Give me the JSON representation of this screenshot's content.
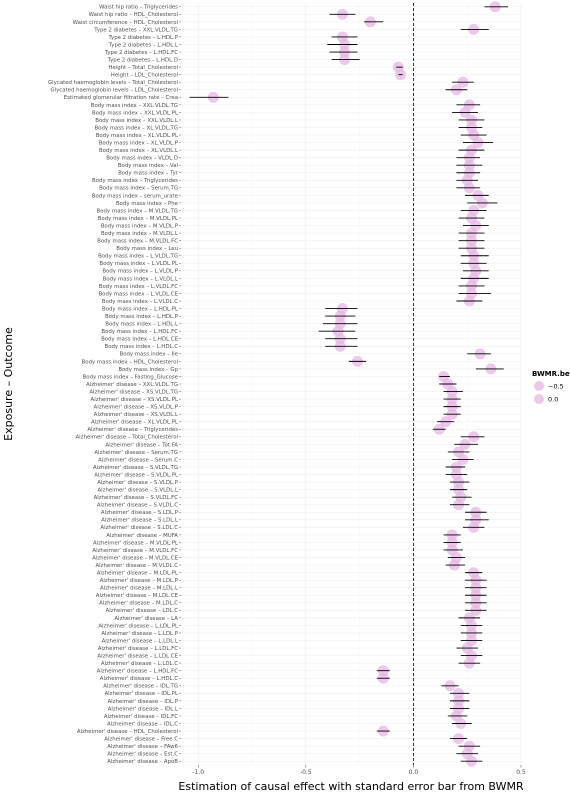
{
  "chart_data": {
    "type": "forest",
    "xlabel": "Estimation of causal effect with standard error bar from BWMR",
    "ylabel": "Exposure – Outcome",
    "xlim": [
      -1.08,
      0.5
    ],
    "xticks": [
      -1.0,
      -0.5,
      0.0,
      0.5
    ],
    "xtick_labels": [
      "-1.0",
      "-0.5",
      "0.0",
      "0.5"
    ],
    "reference_line_x": 0,
    "reference_line_style": "dashed",
    "grid": true,
    "legend": {
      "title": "BWMR.beta",
      "position": "right",
      "entries": [
        "−0.5",
        "0.0"
      ]
    },
    "point_color": "#e7b6e6",
    "rows": [
      {
        "label": "Waist hip ratio – Triglycerides",
        "beta": 0.38,
        "lo": 0.33,
        "hi": 0.44
      },
      {
        "label": "Waist hip ratio – HDL_Cholesterol",
        "beta": -0.33,
        "lo": -0.39,
        "hi": -0.27
      },
      {
        "label": "Waist circumference – HDL_Cholesterol",
        "beta": -0.2,
        "lo": -0.23,
        "hi": -0.14
      },
      {
        "label": "Type 2 diabetes – XXL.VLDL.TG",
        "beta": 0.28,
        "lo": 0.22,
        "hi": 0.35
      },
      {
        "label": "Type 2 diabetes – L.HDL.P",
        "beta": -0.33,
        "lo": -0.38,
        "hi": -0.26
      },
      {
        "label": "Type 2 diabetes – L.HDL.L",
        "beta": -0.32,
        "lo": -0.4,
        "hi": -0.26
      },
      {
        "label": "Type 2 diabetes – L.HDL.FC",
        "beta": -0.32,
        "lo": -0.39,
        "hi": -0.26
      },
      {
        "label": "Type 2 diabetes – L.HDL.D",
        "beta": -0.32,
        "lo": -0.38,
        "hi": -0.25
      },
      {
        "label": "Height – Total_Cholesterol",
        "beta": -0.07,
        "lo": -0.08,
        "hi": -0.05
      },
      {
        "label": "Height – LDL_Cholesterol",
        "beta": -0.06,
        "lo": -0.07,
        "hi": -0.05
      },
      {
        "label": "Glycated haemoglobin levels – Total_Cholesterol",
        "beta": 0.23,
        "lo": 0.18,
        "hi": 0.28
      },
      {
        "label": "Glycated haemoglobin levels – LDL_Cholesterol",
        "beta": 0.2,
        "lo": 0.15,
        "hi": 0.25
      },
      {
        "label": "Estimated glomerular filtration rate – Crea",
        "beta": -0.93,
        "lo": -1.04,
        "hi": -0.86
      },
      {
        "label": "Body mass index – XXL.VLDL.TG",
        "beta": 0.26,
        "lo": 0.2,
        "hi": 0.31
      },
      {
        "label": "Body mass index – XXL.VLDL.PL",
        "beta": 0.24,
        "lo": 0.18,
        "hi": 0.3
      },
      {
        "label": "Body mass index – XXL.VLDL.L",
        "beta": 0.27,
        "lo": 0.21,
        "hi": 0.33
      },
      {
        "label": "Body mass index – XL.VLDL.TG",
        "beta": 0.27,
        "lo": 0.21,
        "hi": 0.32
      },
      {
        "label": "Body mass index – XL.VLDL.PL",
        "beta": 0.28,
        "lo": 0.22,
        "hi": 0.34
      },
      {
        "label": "Body mass index – XL.VLDL.P",
        "beta": 0.3,
        "lo": 0.23,
        "hi": 0.37
      },
      {
        "label": "Body mass index – XL.VLDL.L",
        "beta": 0.27,
        "lo": 0.21,
        "hi": 0.33
      },
      {
        "label": "Body mass index – VLDL.D",
        "beta": 0.26,
        "lo": 0.2,
        "hi": 0.31
      },
      {
        "label": "Body mass index – Val",
        "beta": 0.26,
        "lo": 0.2,
        "hi": 0.32
      },
      {
        "label": "Body mass index – Tyr",
        "beta": 0.26,
        "lo": 0.2,
        "hi": 0.31
      },
      {
        "label": "Body mass index – Triglycerides",
        "beta": 0.25,
        "lo": 0.2,
        "hi": 0.3
      },
      {
        "label": "Body mass index – Serum.TG",
        "beta": 0.26,
        "lo": 0.2,
        "hi": 0.31
      },
      {
        "label": "Body mass index – serum_urate",
        "beta": 0.3,
        "lo": 0.24,
        "hi": 0.35
      },
      {
        "label": "Body mass index – Phe",
        "beta": 0.32,
        "lo": 0.25,
        "hi": 0.39
      },
      {
        "label": "Body mass index – M.VLDL.TG",
        "beta": 0.28,
        "lo": 0.22,
        "hi": 0.34
      },
      {
        "label": "Body mass index – M.VLDL.PL",
        "beta": 0.27,
        "lo": 0.21,
        "hi": 0.33
      },
      {
        "label": "Body mass index – M.VLDL.P",
        "beta": 0.29,
        "lo": 0.23,
        "hi": 0.35
      },
      {
        "label": "Body mass index – M.VLDL.L",
        "beta": 0.27,
        "lo": 0.21,
        "hi": 0.33
      },
      {
        "label": "Body mass index – M.VLDL.FC",
        "beta": 0.27,
        "lo": 0.21,
        "hi": 0.33
      },
      {
        "label": "Body mass index – Leu",
        "beta": 0.27,
        "lo": 0.21,
        "hi": 0.33
      },
      {
        "label": "Body mass index – L.VLDL.TG",
        "beta": 0.28,
        "lo": 0.22,
        "hi": 0.35
      },
      {
        "label": "Body mass index – L.VLDL.PL",
        "beta": 0.28,
        "lo": 0.22,
        "hi": 0.34
      },
      {
        "label": "Body mass index – L.VLDL.P",
        "beta": 0.29,
        "lo": 0.23,
        "hi": 0.35
      },
      {
        "label": "Body mass index – L.VLDL.L",
        "beta": 0.28,
        "lo": 0.22,
        "hi": 0.35
      },
      {
        "label": "Body mass index – L.VLDL.FC",
        "beta": 0.27,
        "lo": 0.21,
        "hi": 0.33
      },
      {
        "label": "Body mass index – L.VLDL.CE",
        "beta": 0.27,
        "lo": 0.21,
        "hi": 0.36
      },
      {
        "label": "Body mass index – L.VLDL.C",
        "beta": 0.26,
        "lo": 0.2,
        "hi": 0.32
      },
      {
        "label": "Body mass index – L.HDL.PL",
        "beta": -0.33,
        "lo": -0.41,
        "hi": -0.26
      },
      {
        "label": "Body mass index – L.HDL.P",
        "beta": -0.34,
        "lo": -0.41,
        "hi": -0.27
      },
      {
        "label": "Body mass index – L.HDL.L",
        "beta": -0.34,
        "lo": -0.42,
        "hi": -0.26
      },
      {
        "label": "Body mass index – L.HDL.FC",
        "beta": -0.35,
        "lo": -0.44,
        "hi": -0.27
      },
      {
        "label": "Body mass index – L.HDL.CE",
        "beta": -0.34,
        "lo": -0.41,
        "hi": -0.26
      },
      {
        "label": "Body mass index – L.HDL.C",
        "beta": -0.34,
        "lo": -0.41,
        "hi": -0.26
      },
      {
        "label": "Body mass index – Ile",
        "beta": 0.31,
        "lo": 0.25,
        "hi": 0.36
      },
      {
        "label": "Body mass index – HDL_Cholesterol",
        "beta": -0.26,
        "lo": -0.3,
        "hi": -0.22
      },
      {
        "label": "Body mass index – Gp",
        "beta": 0.36,
        "lo": 0.29,
        "hi": 0.42
      },
      {
        "label": "Body mass index – Fasting_Glucose",
        "beta": 0.14,
        "lo": 0.12,
        "hi": 0.17
      },
      {
        "label": "Alzheimer' disease – XXL.VLDL.TG",
        "beta": 0.16,
        "lo": 0.12,
        "hi": 0.2
      },
      {
        "label": "Alzheimer' disease – XS.VLDL.TG",
        "beta": 0.18,
        "lo": 0.14,
        "hi": 0.23
      },
      {
        "label": "Alzheimer' disease – XS.VLDL.PL",
        "beta": 0.18,
        "lo": 0.14,
        "hi": 0.22
      },
      {
        "label": "Alzheimer' disease – XS.VLDL.P",
        "beta": 0.18,
        "lo": 0.14,
        "hi": 0.22
      },
      {
        "label": "Alzheimer' disease – XS.VLDL.L",
        "beta": 0.18,
        "lo": 0.14,
        "hi": 0.22
      },
      {
        "label": "Alzheimer' disease – XL.VLDL.PL",
        "beta": 0.15,
        "lo": 0.11,
        "hi": 0.19
      },
      {
        "label": "Alzheimer' disease – Triglycerides",
        "beta": 0.12,
        "lo": 0.09,
        "hi": 0.15
      },
      {
        "label": "Alzheimer' disease – Total_Cholesterol",
        "beta": 0.28,
        "lo": 0.22,
        "hi": 0.33
      },
      {
        "label": "Alzheimer' disease – Tot.FA",
        "beta": 0.24,
        "lo": 0.19,
        "hi": 0.3
      },
      {
        "label": "Alzheimer' disease – Serum.TG",
        "beta": 0.21,
        "lo": 0.16,
        "hi": 0.26
      },
      {
        "label": "Alzheimer' disease – Serum.C",
        "beta": 0.23,
        "lo": 0.18,
        "hi": 0.28
      },
      {
        "label": "Alzheimer' disease – S.VLDL.TG",
        "beta": 0.2,
        "lo": 0.15,
        "hi": 0.24
      },
      {
        "label": "Alzheimer' disease – S.VLDL.PL",
        "beta": 0.2,
        "lo": 0.15,
        "hi": 0.25
      },
      {
        "label": "Alzheimer' disease – S.VLDL.P",
        "beta": 0.21,
        "lo": 0.17,
        "hi": 0.26
      },
      {
        "label": "Alzheimer' disease – S.VLDL.L",
        "beta": 0.21,
        "lo": 0.17,
        "hi": 0.25
      },
      {
        "label": "Alzheimer' disease – S.VLDL.FC",
        "beta": 0.22,
        "lo": 0.18,
        "hi": 0.27
      },
      {
        "label": "Alzheimer' disease – S.VLDL.C",
        "beta": 0.21,
        "lo": 0.17,
        "hi": 0.26
      },
      {
        "label": "Alzheimer' disease – S.LDL.P",
        "beta": 0.29,
        "lo": 0.24,
        "hi": 0.34
      },
      {
        "label": "Alzheimer' disease – S.LDL.L",
        "beta": 0.29,
        "lo": 0.24,
        "hi": 0.35
      },
      {
        "label": "Alzheimer' disease – S.LDL.C",
        "beta": 0.28,
        "lo": 0.23,
        "hi": 0.33
      },
      {
        "label": "Alzheimer' disease – MUFA",
        "beta": 0.18,
        "lo": 0.14,
        "hi": 0.22
      },
      {
        "label": "Alzheimer' disease – M.VLDL.PL",
        "beta": 0.18,
        "lo": 0.14,
        "hi": 0.22
      },
      {
        "label": "Alzheimer' disease – M.VLDL.FC",
        "beta": 0.18,
        "lo": 0.14,
        "hi": 0.23
      },
      {
        "label": "Alzheimer' disease – M.VLDL.CE",
        "beta": 0.2,
        "lo": 0.16,
        "hi": 0.24
      },
      {
        "label": "Alzheimer' disease – M.VLDL.C",
        "beta": 0.19,
        "lo": 0.15,
        "hi": 0.24
      },
      {
        "label": "Alzheimer' disease – M.LDL.PL",
        "beta": 0.28,
        "lo": 0.24,
        "hi": 0.32
      },
      {
        "label": "Alzheimer' disease – M.LDL.P",
        "beta": 0.29,
        "lo": 0.24,
        "hi": 0.34
      },
      {
        "label": "Alzheimer' disease – M.LDL.L",
        "beta": 0.29,
        "lo": 0.24,
        "hi": 0.34
      },
      {
        "label": "Alzheimer' disease – M.LDL.CE",
        "beta": 0.29,
        "lo": 0.24,
        "hi": 0.34
      },
      {
        "label": "Alzheimer' disease – M.LDL.C",
        "beta": 0.29,
        "lo": 0.24,
        "hi": 0.34
      },
      {
        "label": "Alzheimer' disease – LDL.C",
        "beta": 0.29,
        "lo": 0.24,
        "hi": 0.34
      },
      {
        "label": "Alzheimer' disease – LA",
        "beta": 0.26,
        "lo": 0.21,
        "hi": 0.31
      },
      {
        "label": "Alzheimer' disease – L.LDL.PL",
        "beta": 0.27,
        "lo": 0.22,
        "hi": 0.32
      },
      {
        "label": "Alzheimer' disease – L.LDL.P",
        "beta": 0.27,
        "lo": 0.22,
        "hi": 0.32
      },
      {
        "label": "Alzheimer' disease – L.LDL.L",
        "beta": 0.27,
        "lo": 0.22,
        "hi": 0.32
      },
      {
        "label": "Alzheimer' disease – L.LDL.FC",
        "beta": 0.25,
        "lo": 0.2,
        "hi": 0.3
      },
      {
        "label": "Alzheimer' disease – L.LDL.CE",
        "beta": 0.27,
        "lo": 0.22,
        "hi": 0.32
      },
      {
        "label": "Alzheimer' disease – L.LDL.C",
        "beta": 0.26,
        "lo": 0.21,
        "hi": 0.31
      },
      {
        "label": "Alzheimer' disease – L.HDL.FC",
        "beta": -0.14,
        "lo": -0.17,
        "hi": -0.11
      },
      {
        "label": "Alzheimer' disease – L.HDL.C",
        "beta": -0.14,
        "lo": -0.17,
        "hi": -0.11
      },
      {
        "label": "Alzheimer' disease – IDL.TG",
        "beta": 0.17,
        "lo": 0.13,
        "hi": 0.21
      },
      {
        "label": "Alzheimer' disease – IDL.PL",
        "beta": 0.21,
        "lo": 0.17,
        "hi": 0.26
      },
      {
        "label": "Alzheimer' disease – IDL.P",
        "beta": 0.21,
        "lo": 0.17,
        "hi": 0.26
      },
      {
        "label": "Alzheimer' disease – IDL.L",
        "beta": 0.21,
        "lo": 0.17,
        "hi": 0.26
      },
      {
        "label": "Alzheimer' disease – IDL.FC",
        "beta": 0.2,
        "lo": 0.16,
        "hi": 0.25
      },
      {
        "label": "Alzheimer' disease – IDL.C",
        "beta": 0.22,
        "lo": 0.18,
        "hi": 0.27
      },
      {
        "label": "Alzheimer' disease – HDL_Cholesterol",
        "beta": -0.14,
        "lo": -0.17,
        "hi": -0.11
      },
      {
        "label": "Alzheimer' disease – Free.C",
        "beta": 0.21,
        "lo": 0.17,
        "hi": 0.25
      },
      {
        "label": "Alzheimer' disease – FAw6",
        "beta": 0.26,
        "lo": 0.21,
        "hi": 0.31
      },
      {
        "label": "Alzheimer' disease – Est.C",
        "beta": 0.25,
        "lo": 0.2,
        "hi": 0.3
      },
      {
        "label": "Alzheimer' disease – ApoB",
        "beta": 0.27,
        "lo": 0.22,
        "hi": 0.32
      }
    ]
  }
}
